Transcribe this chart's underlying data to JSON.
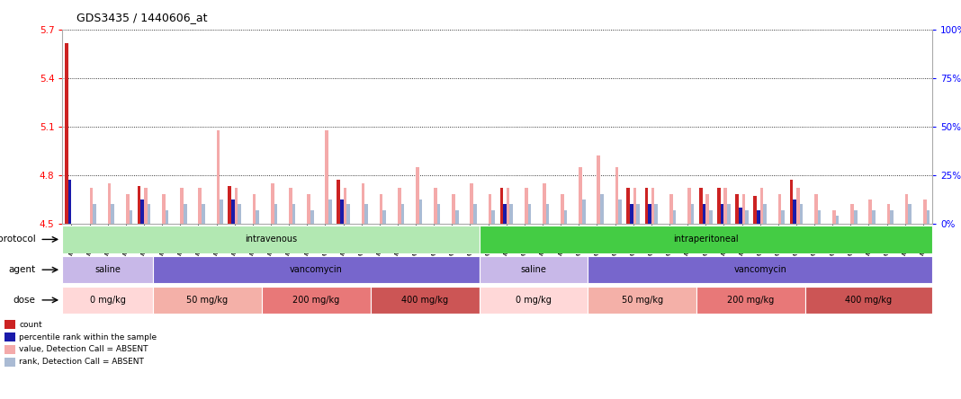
{
  "title": "GDS3435 / 1440606_at",
  "samples": [
    "GSM189045",
    "GSM189047",
    "GSM189048",
    "GSM189049",
    "GSM189050",
    "GSM189051",
    "GSM189052",
    "GSM189053",
    "GSM189054",
    "GSM189055",
    "GSM189056",
    "GSM189057",
    "GSM189058",
    "GSM189059",
    "GSM189060",
    "GSM189062",
    "GSM189063",
    "GSM189064",
    "GSM189065",
    "GSM189066",
    "GSM189068",
    "GSM189069",
    "GSM189070",
    "GSM189071",
    "GSM189072",
    "GSM189073",
    "GSM189074",
    "GSM189075",
    "GSM189076",
    "GSM189077",
    "GSM189078",
    "GSM189079",
    "GSM189080",
    "GSM189081",
    "GSM189082",
    "GSM189083",
    "GSM189084",
    "GSM189085",
    "GSM189086",
    "GSM189087",
    "GSM189088",
    "GSM189089",
    "GSM189090",
    "GSM189091",
    "GSM189092",
    "GSM189093",
    "GSM189094",
    "GSM189095"
  ],
  "count_values": [
    5.62,
    4.5,
    4.5,
    4.5,
    4.73,
    4.5,
    4.5,
    4.5,
    4.5,
    4.73,
    4.5,
    4.5,
    4.5,
    4.5,
    4.5,
    4.77,
    4.5,
    4.5,
    4.5,
    4.5,
    4.5,
    4.5,
    4.5,
    4.5,
    4.72,
    4.5,
    4.5,
    4.5,
    4.5,
    4.5,
    4.5,
    4.72,
    4.72,
    4.5,
    4.5,
    4.72,
    4.72,
    4.68,
    4.67,
    4.5,
    4.77,
    4.5,
    4.5,
    4.5,
    4.5,
    4.5,
    4.5,
    4.5
  ],
  "rank_values": [
    4.77,
    4.5,
    4.5,
    4.5,
    4.65,
    4.5,
    4.5,
    4.5,
    4.5,
    4.65,
    4.5,
    4.5,
    4.5,
    4.5,
    4.5,
    4.65,
    4.5,
    4.5,
    4.5,
    4.5,
    4.5,
    4.5,
    4.5,
    4.5,
    4.62,
    4.5,
    4.5,
    4.5,
    4.5,
    4.5,
    4.5,
    4.62,
    4.62,
    4.5,
    4.5,
    4.62,
    4.62,
    4.6,
    4.58,
    4.5,
    4.65,
    4.5,
    4.5,
    4.5,
    4.5,
    4.5,
    4.5,
    4.5
  ],
  "absent_value": [
    4.5,
    4.72,
    4.75,
    4.68,
    4.72,
    4.68,
    4.72,
    4.72,
    5.08,
    4.72,
    4.68,
    4.75,
    4.72,
    4.68,
    5.08,
    4.72,
    4.75,
    4.68,
    4.72,
    4.85,
    4.72,
    4.68,
    4.75,
    4.68,
    4.72,
    4.72,
    4.75,
    4.68,
    4.85,
    4.92,
    4.85,
    4.72,
    4.72,
    4.68,
    4.72,
    4.68,
    4.72,
    4.68,
    4.72,
    4.68,
    4.72,
    4.68,
    4.58,
    4.62,
    4.65,
    4.62,
    4.68,
    4.65
  ],
  "absent_rank": [
    4.5,
    4.62,
    4.62,
    4.58,
    4.62,
    4.58,
    4.62,
    4.62,
    4.65,
    4.62,
    4.58,
    4.62,
    4.62,
    4.58,
    4.65,
    4.62,
    4.62,
    4.58,
    4.62,
    4.65,
    4.62,
    4.58,
    4.62,
    4.58,
    4.62,
    4.62,
    4.62,
    4.58,
    4.65,
    4.68,
    4.65,
    4.62,
    4.62,
    4.58,
    4.62,
    4.58,
    4.62,
    4.58,
    4.62,
    4.58,
    4.62,
    4.58,
    4.55,
    4.58,
    4.58,
    4.58,
    4.62,
    4.58
  ],
  "ylim_left": [
    4.5,
    5.7
  ],
  "yticks_left": [
    4.5,
    4.8,
    5.1,
    5.4,
    5.7
  ],
  "ylim_right": [
    0,
    100
  ],
  "yticks_right": [
    0,
    25,
    50,
    75,
    100
  ],
  "color_count": "#cc2222",
  "color_rank": "#1a1aaa",
  "color_absent_value": "#f4aaaa",
  "color_absent_rank": "#aabbd4",
  "protocol_bands": [
    {
      "label": "intravenous",
      "start": 0,
      "end": 23,
      "color": "#b2e8b2"
    },
    {
      "label": "intraperitoneal",
      "start": 23,
      "end": 48,
      "color": "#44cc44"
    }
  ],
  "agent_bands": [
    {
      "label": "saline",
      "start": 0,
      "end": 5,
      "color": "#c8b8e8"
    },
    {
      "label": "vancomycin",
      "start": 5,
      "end": 23,
      "color": "#7766cc"
    },
    {
      "label": "saline",
      "start": 23,
      "end": 29,
      "color": "#c8b8e8"
    },
    {
      "label": "vancomycin",
      "start": 29,
      "end": 48,
      "color": "#7766cc"
    }
  ],
  "dose_bands": [
    {
      "label": "0 mg/kg",
      "start": 0,
      "end": 5,
      "color": "#ffd8d8"
    },
    {
      "label": "50 mg/kg",
      "start": 5,
      "end": 11,
      "color": "#f4b0a8"
    },
    {
      "label": "200 mg/kg",
      "start": 11,
      "end": 17,
      "color": "#e87878"
    },
    {
      "label": "400 mg/kg",
      "start": 17,
      "end": 23,
      "color": "#cc5555"
    },
    {
      "label": "0 mg/kg",
      "start": 23,
      "end": 29,
      "color": "#ffd8d8"
    },
    {
      "label": "50 mg/kg",
      "start": 29,
      "end": 35,
      "color": "#f4b0a8"
    },
    {
      "label": "200 mg/kg",
      "start": 35,
      "end": 41,
      "color": "#e87878"
    },
    {
      "label": "400 mg/kg",
      "start": 41,
      "end": 48,
      "color": "#cc5555"
    }
  ],
  "legend_items": [
    {
      "label": "count",
      "color": "#cc2222"
    },
    {
      "label": "percentile rank within the sample",
      "color": "#1a1aaa"
    },
    {
      "label": "value, Detection Call = ABSENT",
      "color": "#f4aaaa"
    },
    {
      "label": "rank, Detection Call = ABSENT",
      "color": "#aabbd4"
    }
  ],
  "bar_width": 0.18
}
